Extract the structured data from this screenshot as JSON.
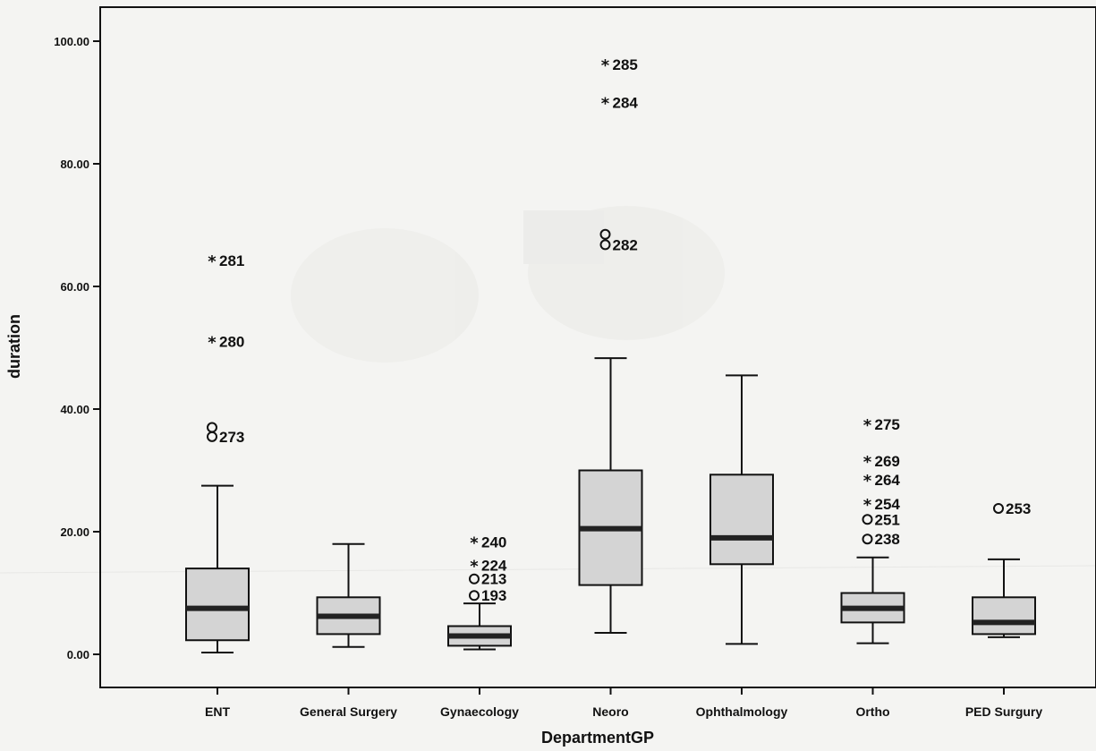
{
  "chart_data": {
    "type": "boxplot",
    "xlabel": "DepartmentGP",
    "ylabel": "duration",
    "ylim": [
      0,
      100
    ],
    "yticks": [
      "0.00",
      "20.00",
      "40.00",
      "60.00",
      "80.00",
      "100.00"
    ],
    "grid": false,
    "box_fill": "#d4d4d4",
    "median_color": "#222222",
    "categories": [
      "ENT",
      "General Surgery",
      "Gynaecology",
      "Neoro",
      "Ophthalmology",
      "Ortho",
      "PED Surgury"
    ],
    "boxes": [
      {
        "category": "ENT",
        "min": 0.3,
        "q1": 2.3,
        "median": 7.5,
        "q3": 14.0,
        "max": 27.5
      },
      {
        "category": "General Surgery",
        "min": 1.2,
        "q1": 3.3,
        "median": 6.2,
        "q3": 9.3,
        "max": 18.0
      },
      {
        "category": "Gynaecology",
        "min": 0.8,
        "q1": 1.4,
        "median": 3.0,
        "q3": 4.6,
        "max": 8.3
      },
      {
        "category": "Neoro",
        "min": 3.5,
        "q1": 11.3,
        "median": 20.5,
        "q3": 30.0,
        "max": 48.3
      },
      {
        "category": "Ophthalmology",
        "min": 1.7,
        "q1": 14.7,
        "median": 19.0,
        "q3": 29.3,
        "max": 45.5
      },
      {
        "category": "Ortho",
        "min": 1.8,
        "q1": 5.2,
        "median": 7.5,
        "q3": 10.0,
        "max": 15.8
      },
      {
        "category": "PED Surgury",
        "min": 2.8,
        "q1": 3.3,
        "median": 5.2,
        "q3": 9.3,
        "max": 15.5
      }
    ],
    "outliers": [
      {
        "category": "ENT",
        "value": 64.2,
        "marker": "star",
        "label": "281"
      },
      {
        "category": "ENT",
        "value": 51.0,
        "marker": "star",
        "label": "280"
      },
      {
        "category": "ENT",
        "value": 37.0,
        "marker": "circle",
        "label": ""
      },
      {
        "category": "ENT",
        "value": 35.5,
        "marker": "circle",
        "label": "273"
      },
      {
        "category": "Gynaecology",
        "value": 18.3,
        "marker": "star",
        "label": "240"
      },
      {
        "category": "Gynaecology",
        "value": 14.5,
        "marker": "star",
        "label": "224"
      },
      {
        "category": "Gynaecology",
        "value": 12.3,
        "marker": "circle",
        "label": "213"
      },
      {
        "category": "Gynaecology",
        "value": 9.6,
        "marker": "circle",
        "label": "193"
      },
      {
        "category": "Neoro",
        "value": 96.2,
        "marker": "star",
        "label": "285"
      },
      {
        "category": "Neoro",
        "value": 90.0,
        "marker": "star",
        "label": "284"
      },
      {
        "category": "Neoro",
        "value": 68.5,
        "marker": "circle",
        "label": ""
      },
      {
        "category": "Neoro",
        "value": 66.8,
        "marker": "circle",
        "label": "282"
      },
      {
        "category": "Ortho",
        "value": 37.5,
        "marker": "star",
        "label": "275"
      },
      {
        "category": "Ortho",
        "value": 31.5,
        "marker": "star",
        "label": "269"
      },
      {
        "category": "Ortho",
        "value": 28.5,
        "marker": "star",
        "label": "264"
      },
      {
        "category": "Ortho",
        "value": 24.5,
        "marker": "star",
        "label": "254"
      },
      {
        "category": "Ortho",
        "value": 22.0,
        "marker": "circle",
        "label": "251"
      },
      {
        "category": "Ortho",
        "value": 18.8,
        "marker": "circle",
        "label": "238"
      },
      {
        "category": "PED Surgury",
        "value": 23.8,
        "marker": "circle",
        "label": "253"
      }
    ]
  }
}
